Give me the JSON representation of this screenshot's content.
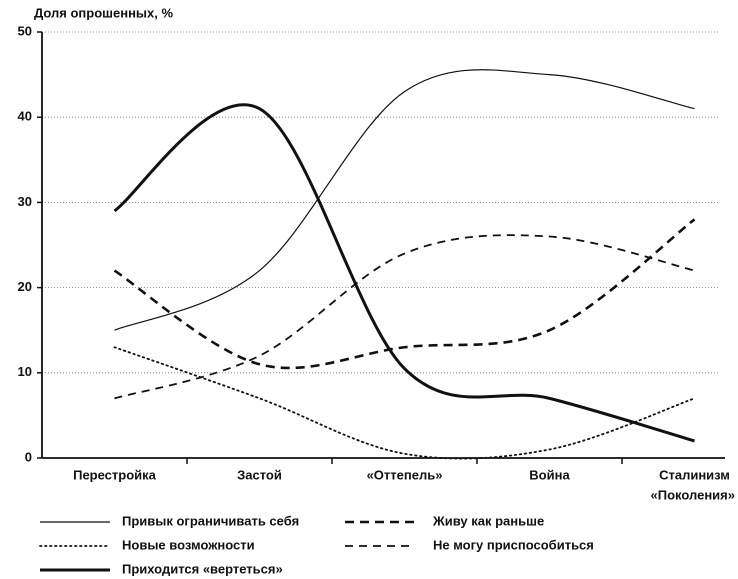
{
  "chart_data": {
    "type": "line",
    "y_label": "Доля опрошенных, %",
    "x_label": "«Поколения»",
    "categories": [
      "Перестройка",
      "Застой",
      "«Оттепель»",
      "Война",
      "Сталинизм"
    ],
    "ylim": [
      0,
      50
    ],
    "yticks": [
      0,
      10,
      20,
      30,
      40,
      50
    ],
    "grid": true,
    "series": [
      {
        "name": "Привык ограничивать себя",
        "color": "#111111",
        "style": "thin",
        "values": [
          15,
          22,
          43,
          45,
          41
        ]
      },
      {
        "name": "Новые возможности",
        "color": "#111111",
        "style": "dotted",
        "values": [
          13,
          7,
          0.5,
          1,
          7
        ]
      },
      {
        "name": "Приходится «вертеться»",
        "color": "#111111",
        "style": "thick",
        "values": [
          29,
          41,
          10.5,
          7,
          2
        ]
      },
      {
        "name": "Живу как раньше",
        "color": "#111111",
        "style": "dashed-thick",
        "values": [
          22,
          11,
          13,
          15,
          28
        ]
      },
      {
        "name": "Не могу приспособиться",
        "color": "#111111",
        "style": "dashed",
        "values": [
          7,
          12,
          24,
          26,
          22
        ]
      }
    ]
  }
}
